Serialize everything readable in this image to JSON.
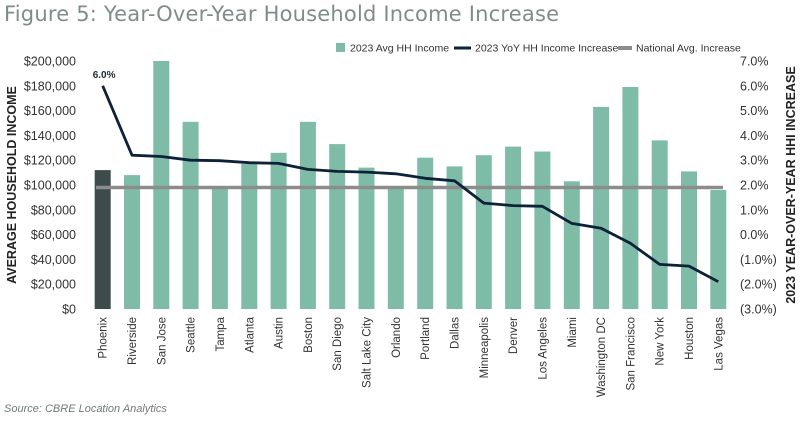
{
  "title": "Figure 5: Year-Over-Year Household Income Increase",
  "source": "Source: CBRE Location Analytics",
  "colors": {
    "bar": "#7fbca8",
    "highlight_bar": "#3e4b4d",
    "yoy_line": "#0d2238",
    "national_line": "#8c8c8c"
  },
  "chart_data": {
    "type": "bar",
    "title": "",
    "categories": [
      "Phoenix",
      "Riverside",
      "San Jose",
      "Seattle",
      "Tampa",
      "Atlanta",
      "Austin",
      "Boston",
      "San Diego",
      "Salt Lake City",
      "Orlando",
      "Portland",
      "Dallas",
      "Minneapolis",
      "Denver",
      "Los Angeles",
      "Miami",
      "Washington DC",
      "San Francisco",
      "New York",
      "Houston",
      "Las Vegas"
    ],
    "series": [
      {
        "name": "2023 Avg HH Income",
        "type": "bar",
        "axis": "left",
        "values": [
          112000,
          108000,
          200000,
          151000,
          99000,
          117000,
          126000,
          151000,
          133000,
          114000,
          99000,
          122000,
          115000,
          124000,
          131000,
          127000,
          103000,
          163000,
          179000,
          136000,
          111000,
          96000
        ]
      },
      {
        "name": "2023 YoY HH Income Increase",
        "type": "line",
        "axis": "right",
        "values": [
          6.0,
          3.2,
          3.15,
          3.0,
          2.98,
          2.9,
          2.87,
          2.63,
          2.55,
          2.52,
          2.45,
          2.27,
          2.17,
          1.27,
          1.17,
          1.14,
          0.45,
          0.26,
          -0.35,
          -1.2,
          -1.27,
          -1.9
        ]
      },
      {
        "name": "National Avg. Increase",
        "type": "line",
        "axis": "right",
        "values": [
          1.9,
          1.9,
          1.9,
          1.9,
          1.9,
          1.9,
          1.9,
          1.9,
          1.9,
          1.9,
          1.9,
          1.9,
          1.9,
          1.9,
          1.9,
          1.9,
          1.9,
          1.9,
          1.9,
          1.9,
          1.9,
          1.9
        ]
      }
    ],
    "highlight_category": "Phoenix",
    "ylabel": "AVERAGE HOUSEHOLD INCOME",
    "y2label": "2023 YEAR-OVER-YEAR HHI INCREASE",
    "ylim": [
      0,
      200000
    ],
    "y2lim": [
      -3.0,
      7.0
    ],
    "y_ticks": [
      0,
      20000,
      40000,
      60000,
      80000,
      100000,
      120000,
      140000,
      160000,
      180000,
      200000
    ],
    "y_tick_labels": [
      "$0",
      "$20,000",
      "$40,000",
      "$60,000",
      "$80,000",
      "$100,000",
      "$120,000",
      "$140,000",
      "$160,000",
      "$180,000",
      "$200,000"
    ],
    "y2_ticks": [
      -3,
      -2,
      -1,
      0,
      1,
      2,
      3,
      4,
      5,
      6,
      7
    ],
    "y2_tick_labels": [
      "(3.0%)",
      "(2.0%)",
      "(1.0%)",
      "0.0%",
      "1.0%",
      "2.0%",
      "3.0%",
      "4.0%",
      "5.0%",
      "6.0%",
      "7.0%"
    ],
    "annotations": [
      {
        "category": "Phoenix",
        "series": "2023 YoY HH Income Increase",
        "text": "6.0%"
      }
    ],
    "legend_position": "top-right",
    "grid": false
  }
}
